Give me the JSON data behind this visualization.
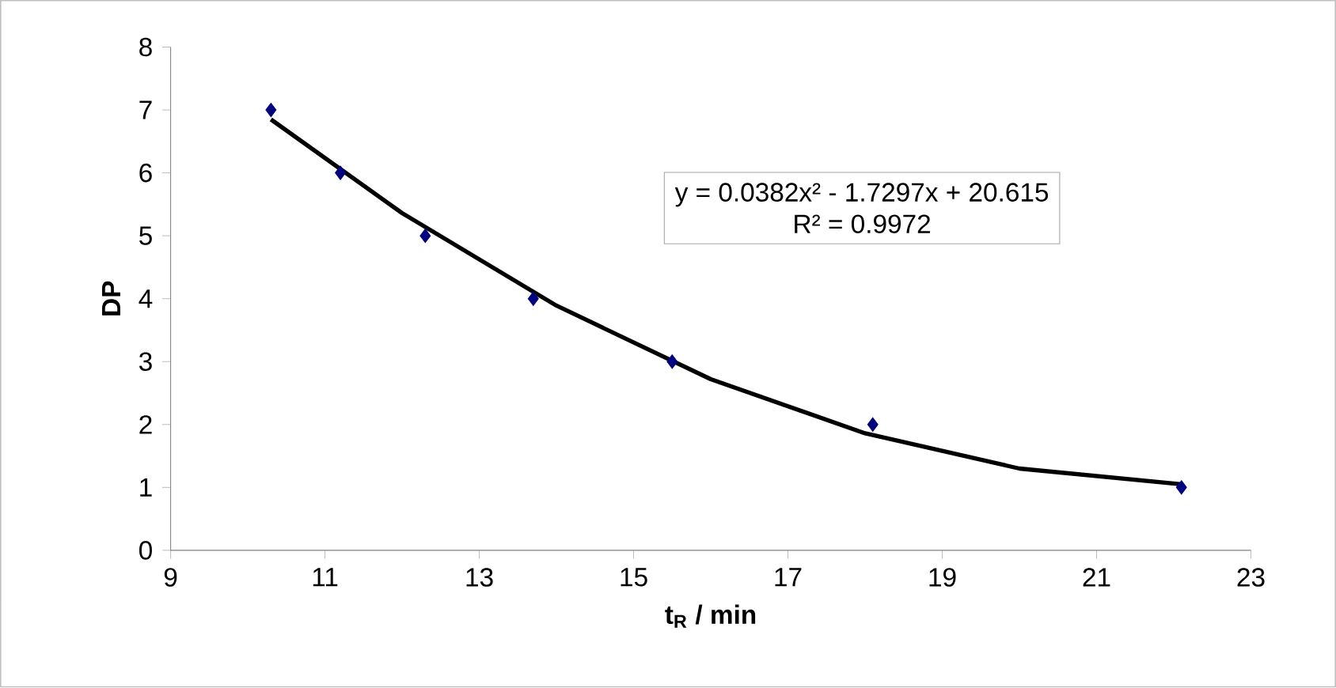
{
  "chart_data": {
    "type": "scatter",
    "xlabel": "t$_{R}$ / min",
    "ylabel": "DP",
    "xlim": [
      9,
      23
    ],
    "ylim": [
      0,
      8
    ],
    "xticks": [
      9,
      11,
      13,
      15,
      17,
      19,
      21,
      23
    ],
    "yticks": [
      0,
      1,
      2,
      3,
      4,
      5,
      6,
      7,
      8
    ],
    "series": [
      {
        "type": "scatter",
        "color": "#000080",
        "marker": "diamond",
        "x": [
          10.3,
          11.2,
          12.3,
          13.7,
          15.5,
          18.1,
          22.1
        ],
        "values": [
          7,
          6,
          5,
          4,
          3,
          2,
          1
        ]
      },
      {
        "type": "line",
        "color": "#000000",
        "marker": "none",
        "line_style": "solid",
        "x": [
          10.3,
          12,
          14,
          16,
          18,
          20,
          22.1
        ],
        "values": [
          6.85,
          5.36,
          3.89,
          2.72,
          1.86,
          1.3,
          1.05
        ]
      }
    ],
    "annotations": [
      "y = 0.0382x² - 1.7297x + 20.615",
      "R² = 0.9972"
    ]
  }
}
